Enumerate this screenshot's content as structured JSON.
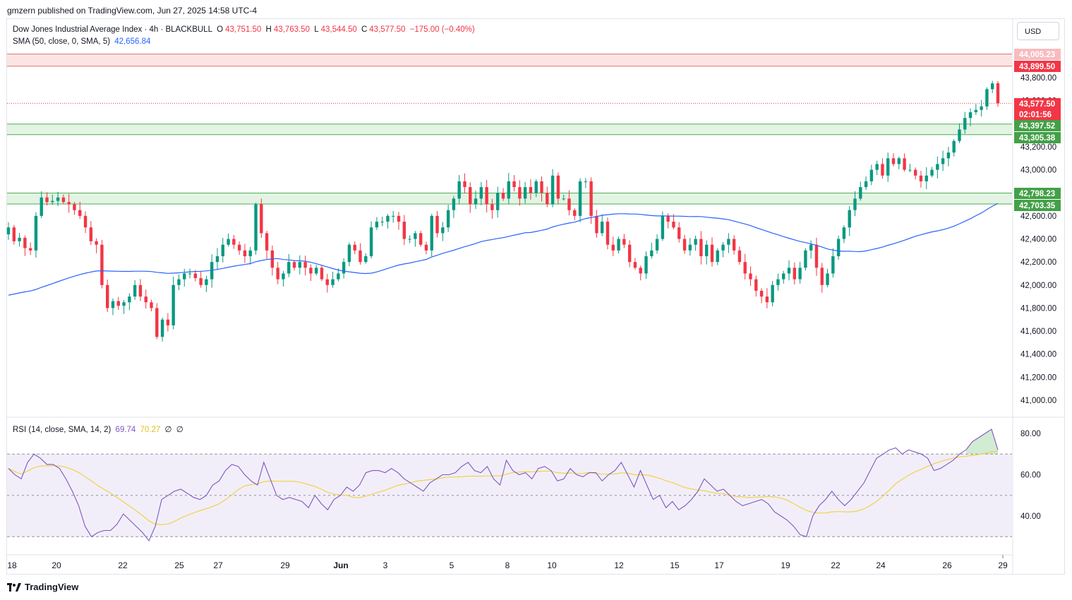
{
  "publish_line": "gmzern published on TradingView.com, Jun 27, 2025 14:58 UTC-4",
  "brand": "TradingView",
  "currency_button": "USD",
  "legend": {
    "symbol": "Dow Jones Industrial Average Index · 4h · BLACKBULL",
    "o_label": "O",
    "o_value": "43,751.50",
    "h_label": "H",
    "h_value": "43,763.50",
    "l_label": "L",
    "l_value": "43,544.50",
    "c_label": "C",
    "c_value": "43,577.50",
    "change": "−175.00 (−0.40%)",
    "sma_label": "SMA (50, close, 0, SMA, 5)",
    "sma_value": "42,656.84",
    "rsi_label": "RSI (14, close, SMA, 14, 2)",
    "rsi_value": "69.74",
    "rsi_sma_value": "70.27",
    "rsi_extra1": "∅",
    "rsi_extra2": "∅"
  },
  "colors": {
    "up": "#089981",
    "down": "#f23645",
    "sma": "#2962ff",
    "rsi": "#7e57c2",
    "rsi_sma": "#f0d24a",
    "resistance_zone": "#fce4e4",
    "support_zone": "#e3f3e4"
  },
  "chart_data": [
    {
      "type": "candlestick",
      "title": "Dow Jones Industrial Average Index · 4h · BLACKBULL",
      "timeframe": "4h",
      "ylim": [
        40800,
        44250
      ],
      "y_ticks": [
        "41,000.00",
        "41,200.00",
        "41,400.00",
        "41,600.00",
        "41,800.00",
        "42,000.00",
        "42,200.00",
        "42,400.00",
        "42,600.00",
        "42,800.00",
        "43,000.00",
        "43,200.00",
        "43,400.00",
        "43,600.00",
        "43,800.00"
      ],
      "x_ticks": [
        "18",
        "20",
        "22",
        "25",
        "27",
        "29",
        "Jun",
        "3",
        "5",
        "8",
        "10",
        "12",
        "15",
        "17",
        "19",
        "22",
        "24",
        "26",
        "29"
      ],
      "closes": [
        42500,
        42380,
        42410,
        42320,
        42300,
        42600,
        42760,
        42720,
        42730,
        42760,
        42720,
        42700,
        42650,
        42600,
        42500,
        42380,
        42350,
        42000,
        41800,
        41860,
        41820,
        41850,
        41900,
        42000,
        41900,
        41850,
        41800,
        41550,
        41700,
        41650,
        42000,
        42050,
        42100,
        42100,
        42060,
        42000,
        42050,
        42200,
        42250,
        42350,
        42400,
        42350,
        42300,
        42250,
        42300,
        42700,
        42450,
        42300,
        42150,
        42050,
        42100,
        42200,
        42150,
        42200,
        42150,
        42100,
        42150,
        42050,
        42000,
        42050,
        42100,
        42200,
        42350,
        42300,
        42200,
        42250,
        42500,
        42550,
        42550,
        42600,
        42600,
        42550,
        42400,
        42400,
        42450,
        42350,
        42300,
        42600,
        42450,
        42500,
        42650,
        42750,
        42900,
        42850,
        42700,
        42750,
        42850,
        42700,
        42650,
        42800,
        42750,
        42900,
        42850,
        42750,
        42850,
        42800,
        42900,
        42800,
        42700,
        42950,
        42750,
        42750,
        42650,
        42600,
        42900,
        42900,
        42600,
        42450,
        42550,
        42350,
        42300,
        42400,
        42350,
        42200,
        42150,
        42100,
        42250,
        42300,
        42400,
        42600,
        42550,
        42500,
        42400,
        42300,
        42350,
        42400,
        42250,
        42350,
        42200,
        42300,
        42350,
        42400,
        42300,
        42200,
        42100,
        42050,
        41950,
        41900,
        41850,
        42000,
        42050,
        42100,
        42150,
        42050,
        42150,
        42300,
        42350,
        42150,
        42000,
        42100,
        42250,
        42400,
        42500,
        42650,
        42750,
        42850,
        42900,
        43000,
        43050,
        42950,
        43100,
        43050,
        43100,
        43000,
        43000,
        42950,
        42900,
        42950,
        43000,
        43050,
        43100,
        43150,
        43250,
        43350,
        43450,
        43500,
        43520,
        43550,
        43700,
        43750,
        43577.5
      ],
      "price_lines": {
        "last_price": "43,577.50",
        "countdown": "02:01:56",
        "resistance_zone": [
          "43,899.50",
          "44,005.23"
        ],
        "support_zone_upper": [
          "43,305.38",
          "43,397.52"
        ],
        "support_zone_lower": [
          "42,703.35",
          "42,798.23"
        ]
      }
    },
    {
      "type": "line",
      "title": "SMA (50, close, 0, SMA, 5)",
      "last_value": 42656.84
    },
    {
      "type": "line",
      "title": "RSI (14, close, SMA, 14, 2)",
      "ylim": [
        25,
        85
      ],
      "y_ticks": [
        "40.00",
        "60.00",
        "80.00"
      ],
      "levels": [
        30,
        50,
        70
      ],
      "rsi": [
        63,
        60,
        58,
        66,
        70,
        68,
        65,
        65,
        63,
        58,
        52,
        45,
        35,
        30,
        32,
        33,
        33,
        36,
        41,
        38,
        35,
        32,
        28,
        35,
        48,
        50,
        52,
        53,
        51,
        49,
        48,
        50,
        55,
        57,
        62,
        65,
        64,
        60,
        57,
        55,
        66,
        58,
        50,
        48,
        49,
        48,
        47,
        44,
        50,
        46,
        43,
        48,
        50,
        54,
        52,
        55,
        61,
        62,
        62,
        61,
        63,
        61,
        58,
        56,
        54,
        52,
        56,
        58,
        60,
        60,
        61,
        64,
        66,
        62,
        61,
        64,
        58,
        55,
        67,
        62,
        60,
        61,
        58,
        63,
        64,
        62,
        57,
        58,
        63,
        60,
        59,
        61,
        61,
        57,
        60,
        62,
        66,
        60,
        54,
        62,
        55,
        48,
        50,
        44,
        47,
        43,
        45,
        48,
        52,
        58,
        55,
        52,
        53,
        50,
        47,
        45,
        46,
        47,
        48,
        46,
        42,
        40,
        38,
        35,
        31,
        30,
        40,
        45,
        48,
        52,
        48,
        45,
        48,
        52,
        56,
        62,
        68,
        70,
        72,
        73,
        70,
        72,
        71,
        70,
        68,
        62,
        63,
        65,
        67,
        70,
        72,
        76,
        78,
        80,
        82,
        72
      ]
    }
  ]
}
